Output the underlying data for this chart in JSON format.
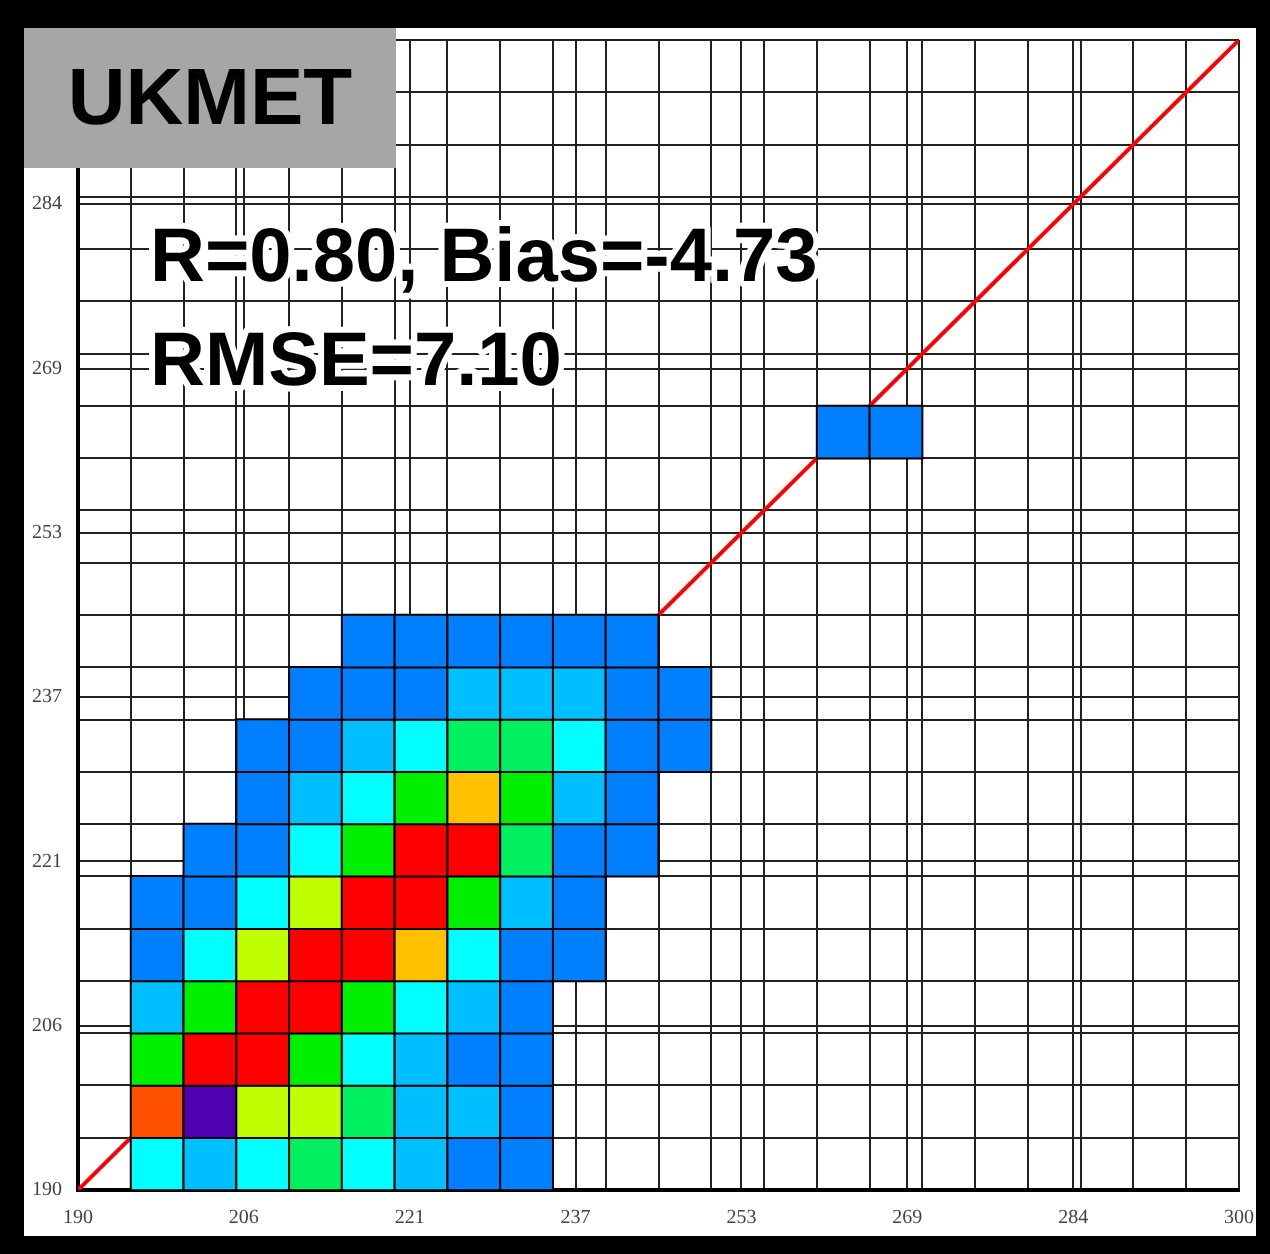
{
  "chart_data": {
    "type": "scatter",
    "title": "UKMET",
    "annotations": [
      "R=0.80, Bias=-4.73",
      "RMSE=7.10"
    ],
    "xlim": [
      190,
      300
    ],
    "ylim": [
      190,
      300
    ],
    "xticks": [
      190,
      {
        "value": 195,
        "label": null
      },
      {
        "value": 200,
        "label": null
      },
      {
        "value": 205,
        "label": null
      },
      {
        "value": 205.71,
        "label": "206"
      },
      {
        "value": 210,
        "label": null
      },
      {
        "value": 215,
        "label": null
      },
      {
        "value": 220,
        "label": null
      },
      {
        "value": 221.43,
        "label": "221"
      },
      {
        "value": 225,
        "label": null
      },
      {
        "value": 230,
        "label": null
      },
      {
        "value": 235,
        "label": null
      },
      {
        "value": 237.14,
        "label": "237"
      },
      {
        "value": 240,
        "label": null
      },
      {
        "value": 245,
        "label": null
      },
      {
        "value": 250,
        "label": null
      },
      {
        "value": 252.86,
        "label": "253"
      },
      {
        "value": 255,
        "label": null
      },
      {
        "value": 260,
        "label": null
      },
      {
        "value": 265,
        "label": null
      },
      {
        "value": 268.57,
        "label": "269"
      },
      {
        "value": 270,
        "label": null
      },
      {
        "value": 275,
        "label": null
      },
      {
        "value": 280,
        "label": null
      },
      {
        "value": 284.29,
        "label": "284"
      },
      {
        "value": 285,
        "label": null
      },
      {
        "value": 290,
        "label": null
      },
      {
        "value": 295,
        "label": null
      },
      300
    ],
    "yticks": [
      190,
      {
        "value": 195,
        "label": null
      },
      {
        "value": 200,
        "label": null
      },
      {
        "value": 205,
        "label": null
      },
      {
        "value": 205.71,
        "label": "206"
      },
      {
        "value": 210,
        "label": null
      },
      {
        "value": 215,
        "label": null
      },
      {
        "value": 220,
        "label": null
      },
      {
        "value": 221.43,
        "label": "221"
      },
      {
        "value": 225,
        "label": null
      },
      {
        "value": 230,
        "label": null
      },
      {
        "value": 235,
        "label": null
      },
      {
        "value": 237.14,
        "label": "237"
      },
      {
        "value": 240,
        "label": null
      },
      {
        "value": 245,
        "label": null
      },
      {
        "value": 250,
        "label": null
      },
      {
        "value": 252.86,
        "label": "253"
      },
      {
        "value": 255,
        "label": null
      },
      {
        "value": 260,
        "label": null
      },
      {
        "value": 265,
        "label": null
      },
      {
        "value": 268.57,
        "label": "269"
      },
      {
        "value": 270,
        "label": null
      },
      {
        "value": 275,
        "label": null
      },
      {
        "value": 280,
        "label": null
      },
      {
        "value": 284.29,
        "label": "284"
      },
      {
        "value": 285,
        "label": null
      },
      {
        "value": 290,
        "label": null
      },
      {
        "value": 295,
        "label": null
      },
      {
        "value": 300,
        "label": null
      }
    ],
    "grid": true,
    "series": [
      {
        "marker": "square",
        "x": [
          197.5,
          202.5,
          207.5,
          212.5,
          217.5,
          222.5,
          227.5,
          232.5,
          197.5,
          202.5,
          207.5,
          212.5,
          217.5,
          222.5,
          227.5,
          232.5,
          197.5,
          202.5,
          207.5,
          212.5,
          217.5,
          222.5,
          227.5,
          232.5,
          197.5,
          202.5,
          207.5,
          212.5,
          217.5,
          222.5,
          227.5,
          232.5,
          197.5,
          202.5,
          207.5,
          212.5,
          217.5,
          222.5,
          227.5,
          232.5,
          237.5,
          197.5,
          202.5,
          207.5,
          212.5,
          217.5,
          222.5,
          227.5,
          232.5,
          237.5,
          202.5,
          207.5,
          212.5,
          217.5,
          222.5,
          227.5,
          232.5,
          237.5,
          242.5,
          207.5,
          212.5,
          217.5,
          222.5,
          227.5,
          232.5,
          237.5,
          242.5,
          207.5,
          212.5,
          217.5,
          222.5,
          227.5,
          232.5,
          237.5,
          242.5,
          247.5,
          212.5,
          217.5,
          222.5,
          227.5,
          232.5,
          237.5,
          242.5,
          247.5,
          217.5,
          222.5,
          227.5,
          232.5,
          237.5,
          242.5,
          262.5,
          267.5
        ],
        "values": [
          192.5,
          192.5,
          192.5,
          192.5,
          192.5,
          192.5,
          192.5,
          192.5,
          197.5,
          197.5,
          197.5,
          197.5,
          197.5,
          197.5,
          197.5,
          197.5,
          202.5,
          202.5,
          202.5,
          202.5,
          202.5,
          202.5,
          202.5,
          202.5,
          207.5,
          207.5,
          207.5,
          207.5,
          207.5,
          207.5,
          207.5,
          207.5,
          212.5,
          212.5,
          212.5,
          212.5,
          212.5,
          212.5,
          212.5,
          212.5,
          212.5,
          217.5,
          217.5,
          217.5,
          217.5,
          217.5,
          217.5,
          217.5,
          217.5,
          217.5,
          222.5,
          222.5,
          222.5,
          222.5,
          222.5,
          222.5,
          222.5,
          222.5,
          222.5,
          227.5,
          227.5,
          227.5,
          227.5,
          227.5,
          227.5,
          227.5,
          227.5,
          232.5,
          232.5,
          232.5,
          232.5,
          232.5,
          232.5,
          232.5,
          232.5,
          232.5,
          237.5,
          237.5,
          237.5,
          237.5,
          237.5,
          237.5,
          237.5,
          237.5,
          242.5,
          242.5,
          242.5,
          242.5,
          242.5,
          242.5,
          262.5,
          262.5
        ],
        "colors": [
          "#00ffff",
          "#00bfff",
          "#00ffff",
          "#00f060",
          "#00ffff",
          "#00bfff",
          "#0080ff",
          "#0080ff",
          "#ff5000",
          "#5000b0",
          "#c0ff00",
          "#c0ff00",
          "#00f060",
          "#00bfff",
          "#00bfff",
          "#0080ff",
          "#00f000",
          "#ff0000",
          "#ff0000",
          "#00f000",
          "#00ffff",
          "#00bfff",
          "#0080ff",
          "#0080ff",
          "#00bfff",
          "#00f000",
          "#ff0000",
          "#ff0000",
          "#00f000",
          "#00ffff",
          "#00bfff",
          "#0080ff",
          "#0080ff",
          "#00ffff",
          "#c0ff00",
          "#ff0000",
          "#ff0000",
          "#ffc000",
          "#00ffff",
          "#0080ff",
          "#0080ff",
          "#0080ff",
          "#0080ff",
          "#00ffff",
          "#c0ff00",
          "#ff0000",
          "#ff0000",
          "#00f000",
          "#00bfff",
          "#0080ff",
          "#0080ff",
          "#0080ff",
          "#00ffff",
          "#00f000",
          "#ff0000",
          "#ff0000",
          "#00f060",
          "#0080ff",
          "#0080ff",
          "#0080ff",
          "#00bfff",
          "#00ffff",
          "#00f000",
          "#ffc000",
          "#00f000",
          "#00bfff",
          "#0080ff",
          "#0080ff",
          "#0080ff",
          "#00bfff",
          "#00ffff",
          "#00f060",
          "#00f060",
          "#00ffff",
          "#0080ff",
          "#0080ff",
          "#0080ff",
          "#0080ff",
          "#0080ff",
          "#00bfff",
          "#00bfff",
          "#00bfff",
          "#0080ff",
          "#0080ff",
          "#0080ff",
          "#0080ff",
          "#0080ff",
          "#0080ff",
          "#0080ff",
          "#0080ff",
          "#0080ff",
          "#0080ff"
        ]
      },
      {
        "type": "line",
        "marker": "none",
        "color": "#ff0000",
        "x": [
          190,
          300
        ],
        "values": [
          190,
          300
        ]
      }
    ]
  }
}
